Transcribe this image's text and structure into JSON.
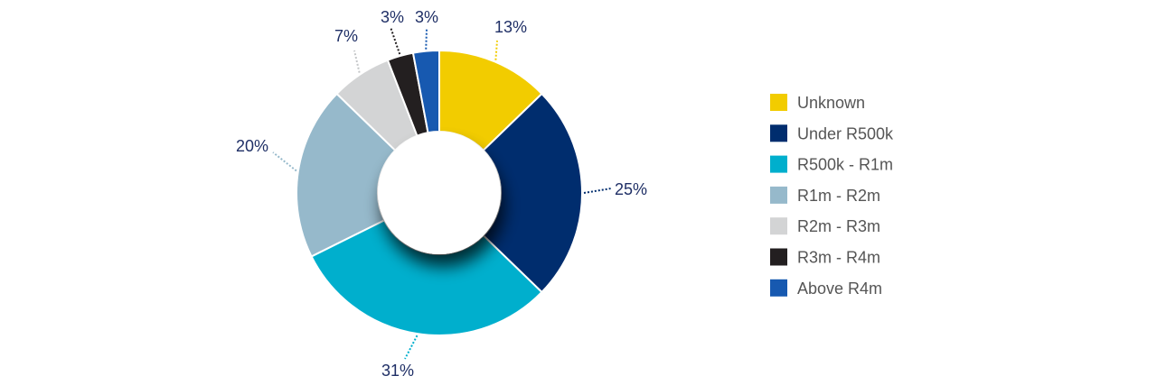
{
  "chart_data": {
    "type": "pie",
    "title": "",
    "legend_position": "right",
    "slices": [
      {
        "label": "Unknown",
        "value": 13,
        "display": "13%",
        "color": "#f2cc00"
      },
      {
        "label": "Under R500k",
        "value": 25,
        "display": "25%",
        "color": "#002d6e"
      },
      {
        "label": "R500k - R1m",
        "value": 31,
        "display": "31%",
        "color": "#00afcd"
      },
      {
        "label": "R1m - R2m",
        "value": 20,
        "display": "20%",
        "color": "#96b9cb"
      },
      {
        "label": "R2m - R3m",
        "value": 7,
        "display": "7%",
        "color": "#d3d4d5"
      },
      {
        "label": "R3m - R4m",
        "value": 3,
        "display": "3%",
        "color": "#231f20"
      },
      {
        "label": "Above R4m",
        "value": 3,
        "display": "3%",
        "color": "#1759b0"
      }
    ]
  }
}
